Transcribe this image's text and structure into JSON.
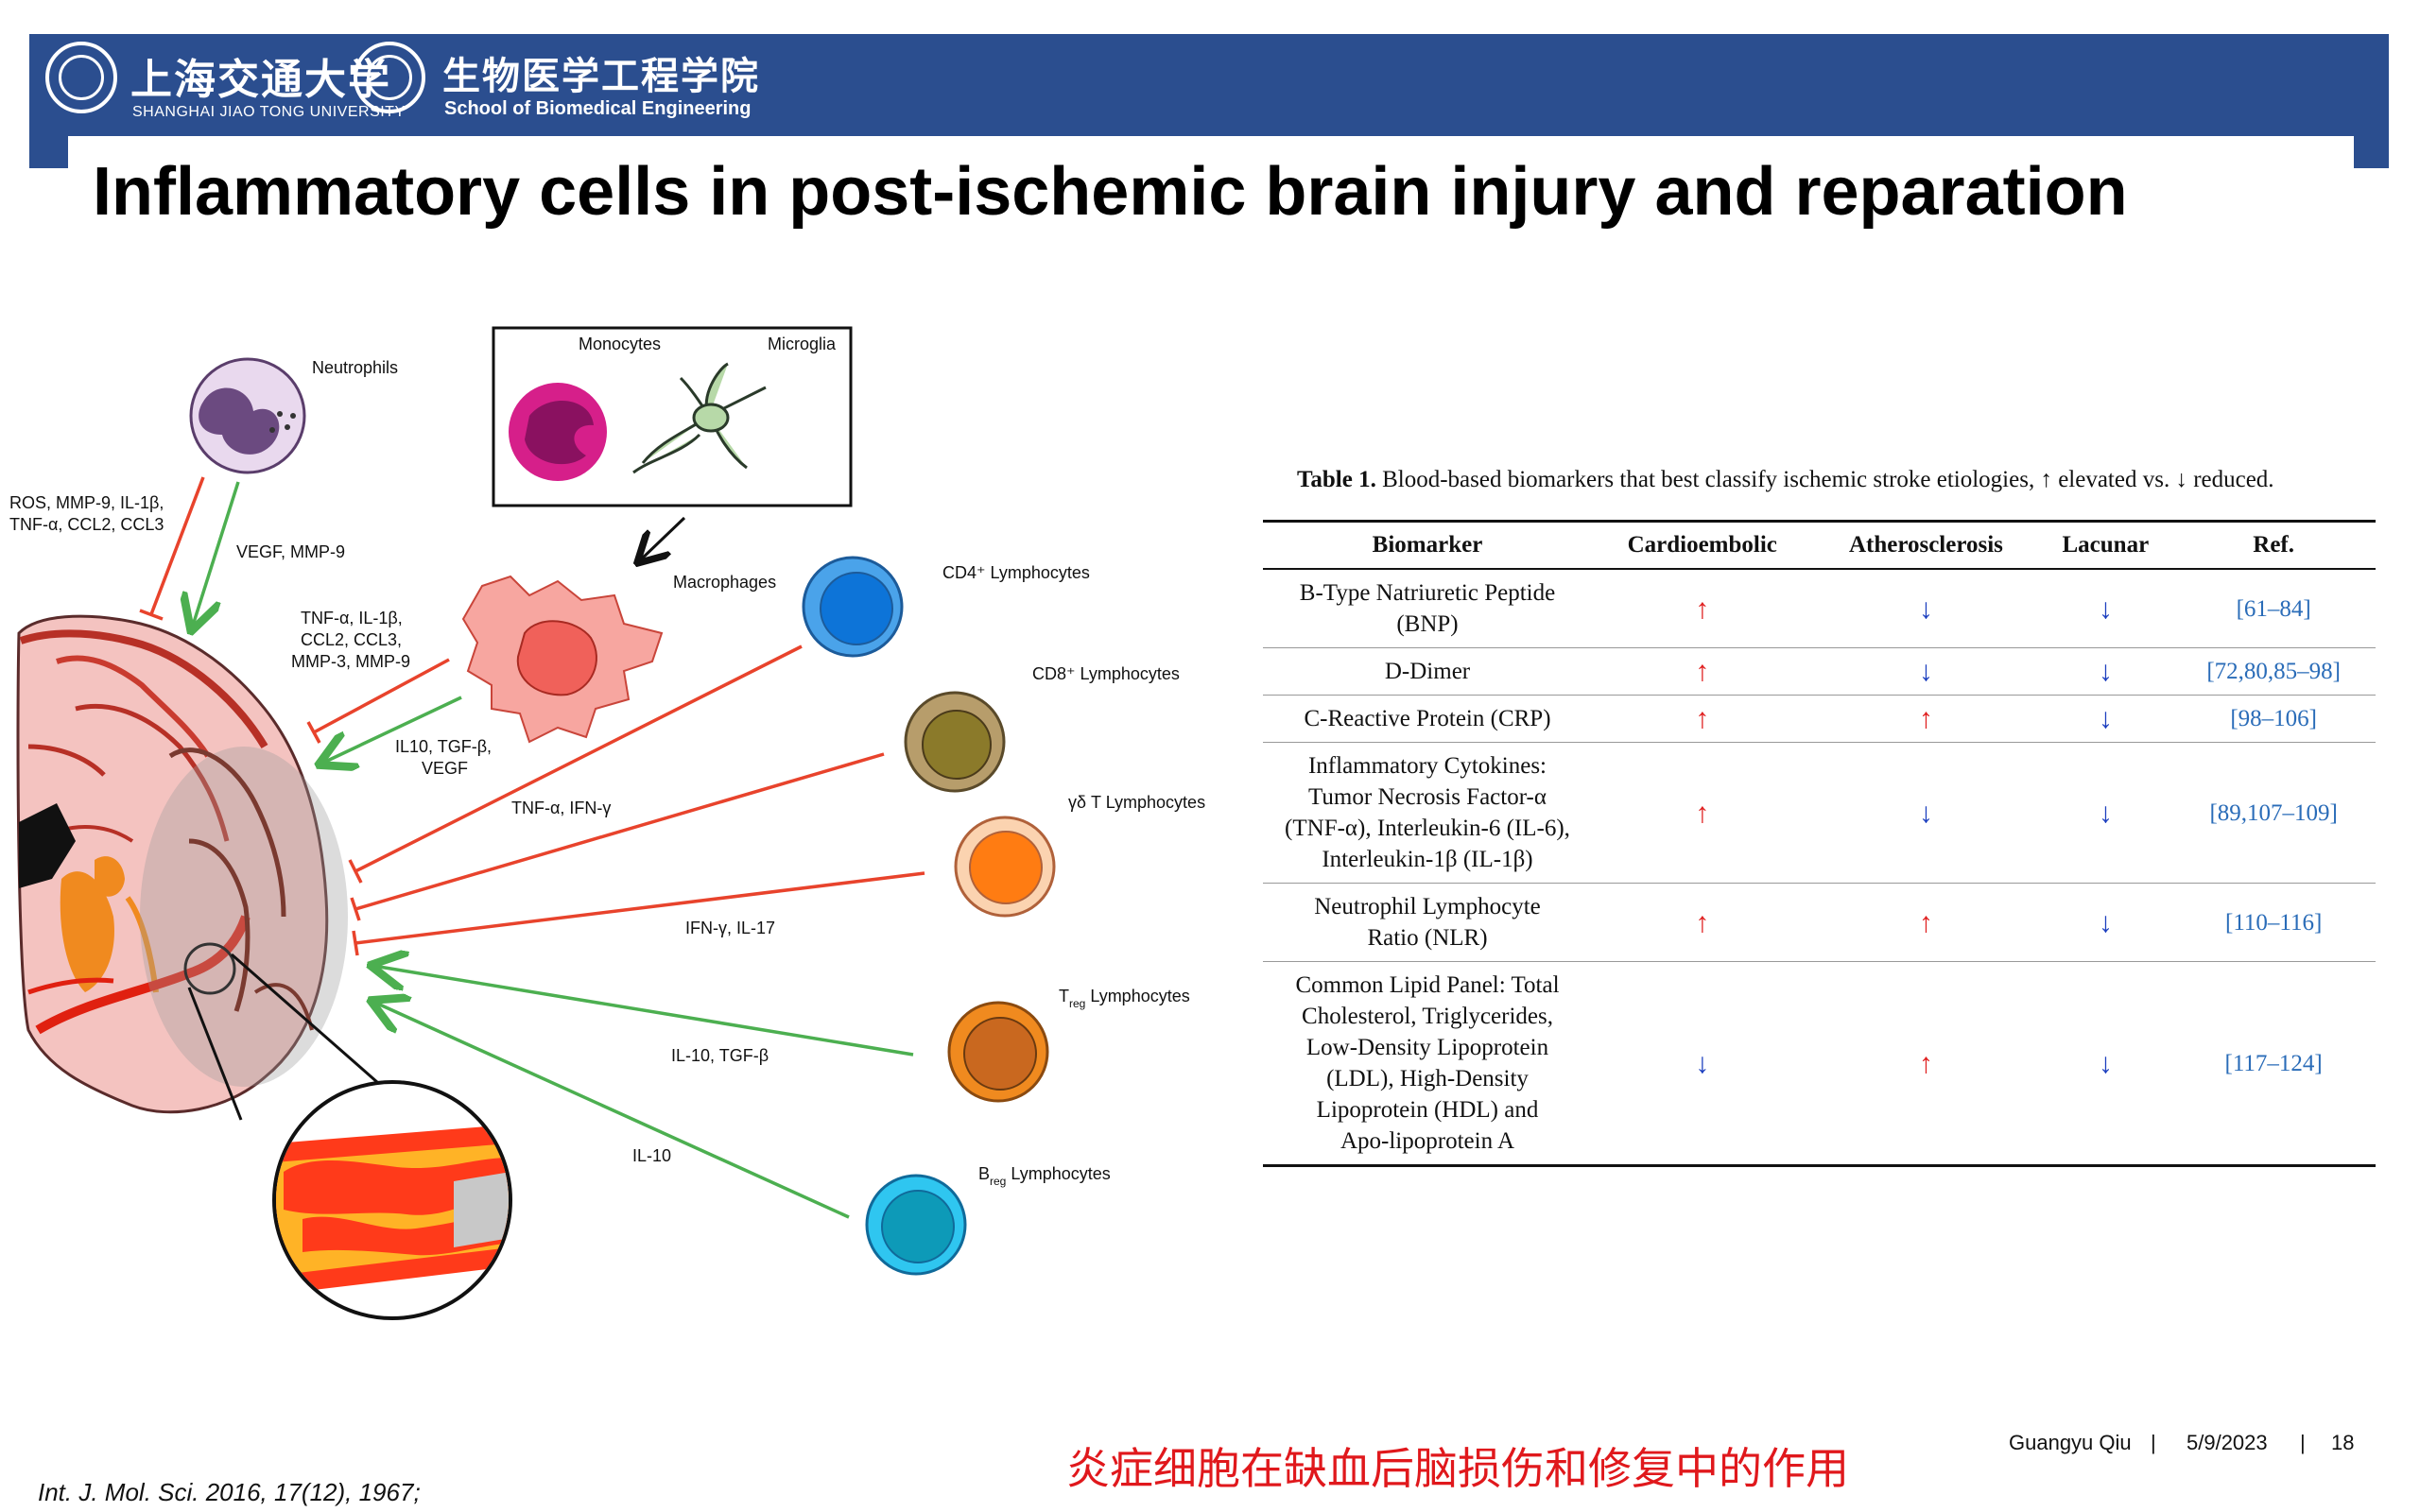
{
  "header": {
    "university_cn": "上海交通大学",
    "university_en": "SHANGHAI JIAO TONG UNIVERSITY",
    "school_cn": "生物医学工程学院",
    "school_en": "School of Biomedical Engineering",
    "banner_color": "#2b4e8f"
  },
  "title": "Inflammatory cells in post-ischemic brain injury and reparation",
  "figure": {
    "neutrophils": "Neutrophils",
    "monocytes": "Monocytes",
    "microglia": "Microglia",
    "macrophages": "Macrophages",
    "ros_1": "ROS, MMP-9, IL-1β,",
    "ros_2": "TNF-α, CCL2, CCL3",
    "vegf_mmp9": "VEGF, MMP-9",
    "tnf_1": "TNF-α, IL-1β,",
    "tnf_2": "CCL2, CCL3,",
    "tnf_3": "MMP-3, MMP-9",
    "il10_1": "IL10, TGF-β,",
    "il10_2": "VEGF",
    "cd4": "CD4⁺ Lymphocytes",
    "cd8": "CD8⁺ Lymphocytes",
    "gd": "γδ T Lymphocytes",
    "treg_t": "T",
    "treg_sub": "reg",
    "treg_rest": " Lymphocytes",
    "breg_b": "B",
    "breg_sub": "reg",
    "breg_rest": " Lymphocytes",
    "tnf_ifn": "TNF-α, IFN-γ",
    "ifn_il17": "IFN-γ, IL-17",
    "il10_tgf": "IL-10, TGF-β",
    "il10": "IL-10"
  },
  "table": {
    "caption_bold": "Table 1.",
    "caption_rest": " Blood-based biomarkers that best classify ischemic stroke etiologies, ↑ elevated vs. ↓ reduced.",
    "headers": [
      "Biomarker",
      "Cardioembolic",
      "Atherosclerosis",
      "Lacunar",
      "Ref."
    ],
    "rows": [
      {
        "biomarker": [
          "B-Type Natriuretic Peptide",
          "(BNP)"
        ],
        "c": "↑",
        "a": "↓",
        "l": "↓",
        "ref_links": [
          "61",
          "84"
        ],
        "ref_text": "[61–84]"
      },
      {
        "biomarker": [
          "D-Dimer"
        ],
        "c": "↑",
        "a": "↓",
        "l": "↓",
        "ref_text": "[72,80,85–98]"
      },
      {
        "biomarker": [
          "C-Reactive Protein (CRP)"
        ],
        "c": "↑",
        "a": "↑",
        "l": "↓",
        "ref_text": "[98–106]"
      },
      {
        "biomarker": [
          "Inflammatory Cytokines:",
          "Tumor Necrosis Factor-α",
          "(TNF-α), Interleukin-6 (IL-6),",
          "Interleukin-1β (IL-1β)"
        ],
        "c": "↑",
        "a": "↓",
        "l": "↓",
        "ref_text": "[89,107–109]"
      },
      {
        "biomarker": [
          "Neutrophil Lymphocyte",
          "Ratio (NLR)"
        ],
        "c": "↑",
        "a": "↑",
        "l": "↓",
        "ref_text": "[110–116]"
      },
      {
        "biomarker": [
          "Common Lipid Panel: Total",
          "Cholesterol, Triglycerides,",
          "Low-Density Lipoprotein",
          "(LDL), High-Density",
          "Lipoprotein (HDL) and",
          "Apo-lipoprotein A"
        ],
        "c": "↓",
        "a": "↑",
        "l": "↓",
        "ref_text": "[117–124]"
      }
    ]
  },
  "footer": {
    "subtitle_cn": "炎症细胞在缺血后脑损伤和修复中的作用",
    "author": "Guangyu Qiu",
    "sep1": "|",
    "date": "5/9/2023",
    "sep2": "|",
    "page": "18",
    "citation": "Int. J. Mol. Sci. 2016, 17(12), 1967;"
  }
}
